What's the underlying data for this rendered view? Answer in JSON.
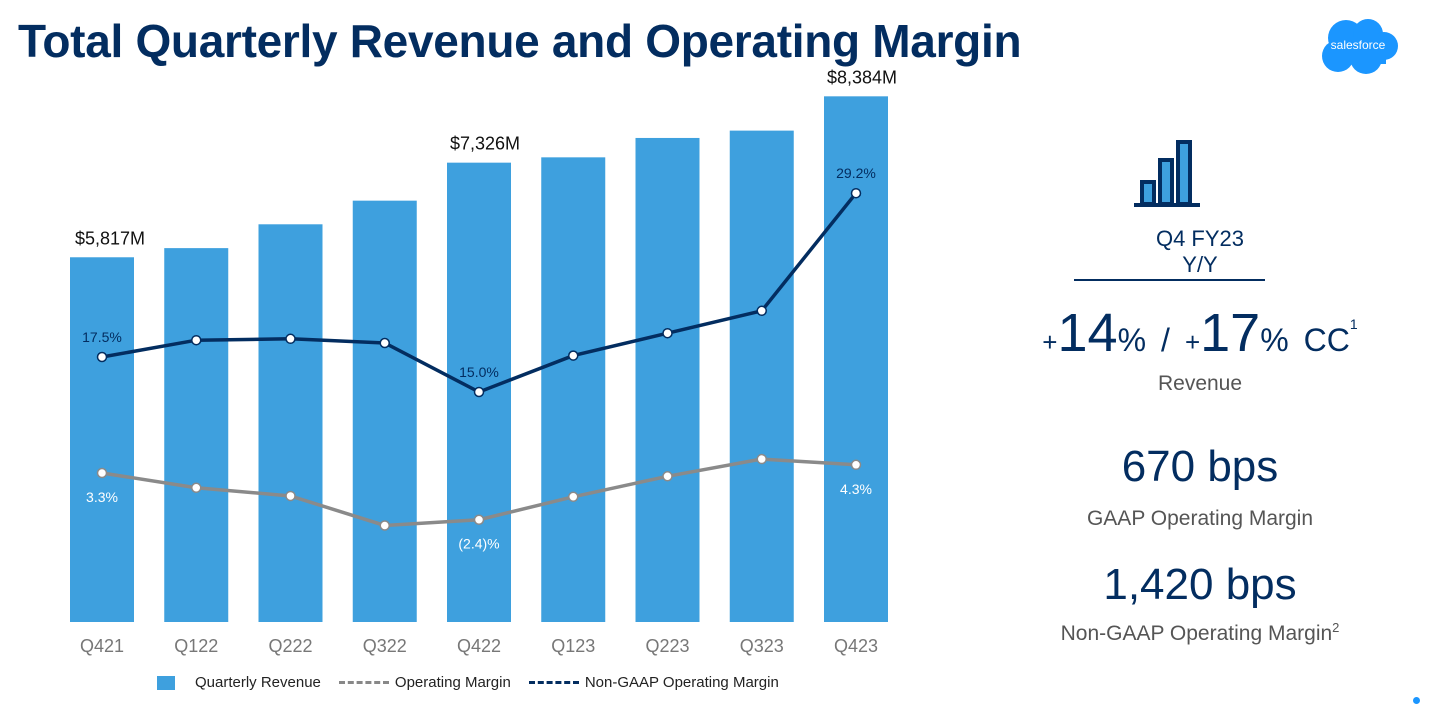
{
  "title": "Total Quarterly Revenue and Operating Margin",
  "logo_text": "salesforce",
  "colors": {
    "bar": "#3ea0de",
    "nongaap_line": "#032d60",
    "gaap_line": "#8a8a8a",
    "navy": "#032d60"
  },
  "chart_data": {
    "type": "bar",
    "categories": [
      "Q421",
      "Q122",
      "Q222",
      "Q322",
      "Q422",
      "Q123",
      "Q223",
      "Q323",
      "Q423"
    ],
    "series": [
      {
        "name": "Quarterly Revenue",
        "type": "bar",
        "unit": "$M",
        "values": [
          5817,
          5963,
          6343,
          6720,
          7326,
          7411,
          7720,
          7837,
          8384
        ]
      },
      {
        "name": "Non-GAAP Operating Margin",
        "type": "line",
        "unit": "%",
        "values": [
          17.5,
          18.7,
          18.8,
          18.5,
          15.0,
          17.6,
          19.2,
          20.8,
          29.2
        ]
      },
      {
        "name": "Operating Margin",
        "type": "line",
        "unit": "%",
        "values": [
          3.3,
          1.5,
          0.5,
          -3.1,
          -2.4,
          0.4,
          2.9,
          5.0,
          4.3
        ]
      }
    ],
    "bar_labels": [
      {
        "index": 0,
        "text": "$5,817M"
      },
      {
        "index": 4,
        "text": "$7,326M"
      },
      {
        "index": 8,
        "text": "$8,384M"
      }
    ],
    "nongaap_labels": [
      {
        "index": 0,
        "text": "17.5%"
      },
      {
        "index": 4,
        "text": "15.0%"
      },
      {
        "index": 8,
        "text": "29.2%"
      }
    ],
    "gaap_labels": [
      {
        "index": 0,
        "text": "3.3%"
      },
      {
        "index": 4,
        "text": "(2.4)%"
      },
      {
        "index": 8,
        "text": "4.3%"
      }
    ],
    "legend_position": "bottom",
    "grid": false
  },
  "legend": {
    "revenue": "Quarterly Revenue",
    "gaap": "Operating Margin",
    "nongaap": "Non-GAAP Operating Margin"
  },
  "kpi": {
    "icon": "bar-chart-icon",
    "period_line1": "Q4 FY23",
    "period_line2": "Y/Y",
    "growth_plus1": "+",
    "growth_value1": "14",
    "growth_pct1": "%",
    "growth_sep": "/",
    "growth_plus2": "+",
    "growth_value2": "17",
    "growth_pct2": "%",
    "growth_cc": "CC",
    "growth_cc_footnote": "1",
    "growth_label": "Revenue",
    "gaap_bps": "670 bps",
    "gaap_label": "GAAP Operating Margin",
    "nongaap_bps": "1,420 bps",
    "nongaap_label": "Non-GAAP Operating Margin",
    "nongaap_footnote": "2"
  }
}
